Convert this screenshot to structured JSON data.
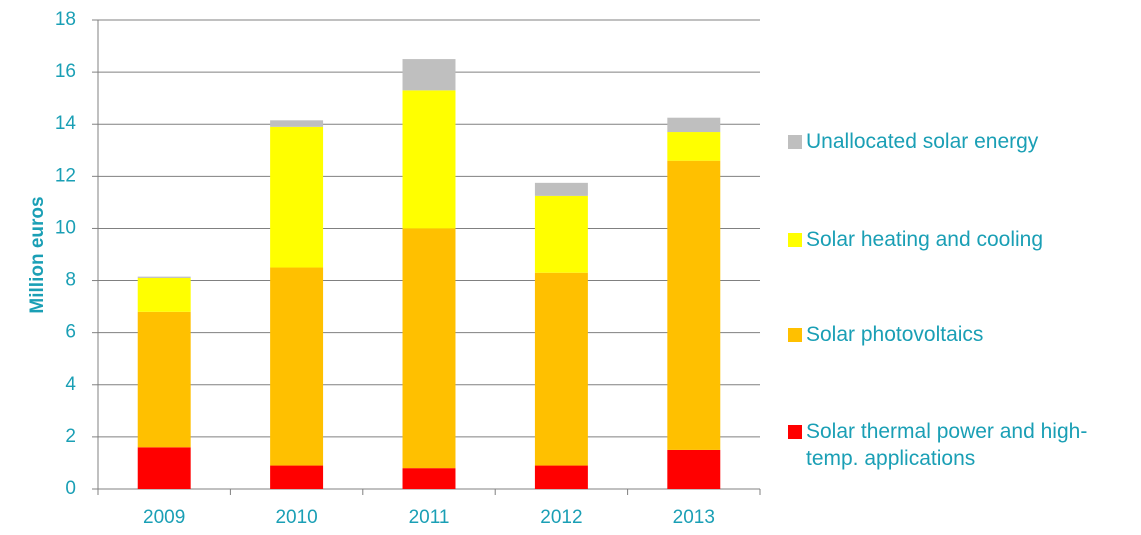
{
  "chart_data": {
    "type": "stacked_bar",
    "y_label": "Million euros",
    "categories": [
      "2009",
      "2010",
      "2011",
      "2012",
      "2013"
    ],
    "series": [
      {
        "name": "Solar thermal power and high-temp. applications",
        "color": "#ff0000",
        "values": [
          1.6,
          0.9,
          0.8,
          0.9,
          1.5
        ]
      },
      {
        "name": "Solar photovoltaics",
        "color": "#ffc000",
        "values": [
          5.2,
          7.6,
          9.2,
          7.4,
          11.1
        ]
      },
      {
        "name": "Solar heating and cooling",
        "color": "#ffff00",
        "values": [
          1.3,
          5.4,
          5.3,
          2.95,
          1.1
        ]
      },
      {
        "name": "Unallocated solar energy",
        "color": "#bfbfbf",
        "values": [
          0.05,
          0.25,
          1.2,
          0.5,
          0.55
        ]
      }
    ],
    "ylim": [
      0,
      18
    ],
    "yticks": [
      0,
      2,
      4,
      6,
      8,
      10,
      12,
      14,
      16,
      18
    ],
    "grid": true
  }
}
